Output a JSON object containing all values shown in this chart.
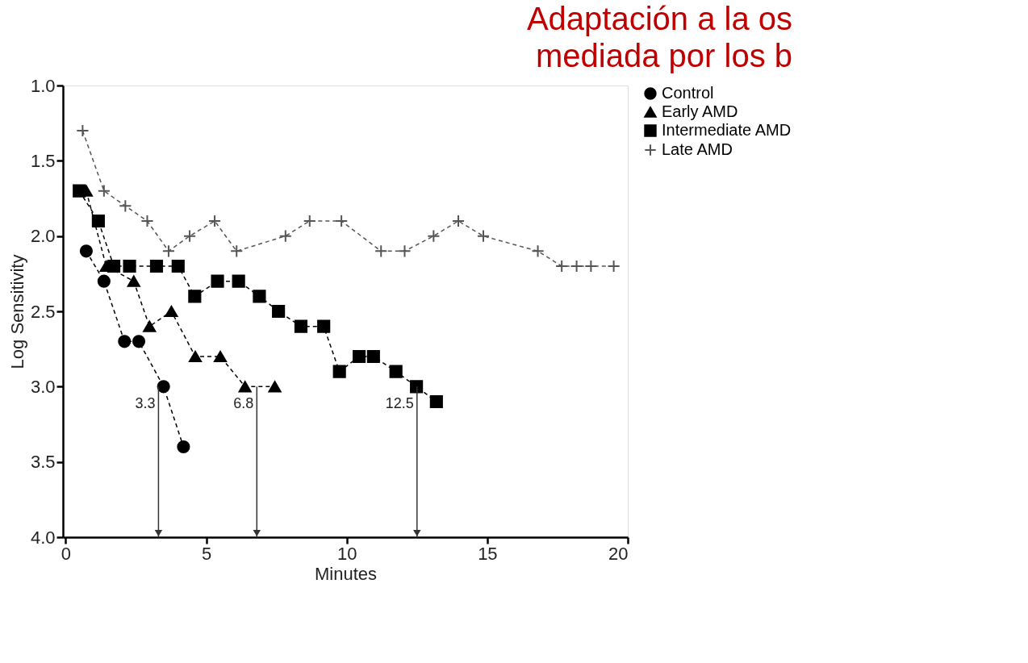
{
  "chart_data": {
    "type": "line",
    "title": "Adaptación a la os\nmediada por los b",
    "xlabel": "Minutes",
    "ylabel": "Log Sensitivity",
    "xlim": [
      -0.1,
      20
    ],
    "xticks": [
      0,
      5,
      10,
      15,
      20
    ],
    "ylim": [
      4.0,
      1.0
    ],
    "yticks": [
      {
        "value": 1,
        "label": "1.0"
      },
      1.5,
      {
        "value": 2,
        "label": "2.0"
      },
      2.5,
      {
        "value": 3,
        "label": "3.0"
      },
      3.5,
      {
        "value": 4,
        "label": "4.0"
      }
    ],
    "grid": false,
    "legend": "right",
    "line_style": "dashed",
    "series": [
      {
        "name": "Control",
        "color": "#000000",
        "marker": "circle",
        "x": [
          0.73,
          1.36,
          2.09,
          2.6,
          3.48,
          4.19
        ],
        "values": [
          2.1,
          2.3,
          2.7,
          2.7,
          3.0,
          3.4
        ]
      },
      {
        "name": "Early AMD",
        "color": "#000000",
        "marker": "triangle",
        "x": [
          0.73,
          1.44,
          2.42,
          2.98,
          3.76,
          4.61,
          5.5,
          6.38,
          7.44
        ],
        "values": [
          1.7,
          2.2,
          2.3,
          2.6,
          2.5,
          2.8,
          2.8,
          3.0,
          3.0
        ]
      },
      {
        "name": "Intermediate AMD",
        "color": "#000000",
        "marker": "square",
        "x": [
          0.48,
          1.16,
          1.71,
          2.27,
          3.23,
          4.0,
          4.59,
          5.4,
          6.15,
          6.89,
          7.57,
          8.37,
          9.18,
          9.74,
          10.44,
          10.95,
          11.75,
          12.48,
          13.19
        ],
        "values": [
          1.7,
          1.9,
          2.2,
          2.2,
          2.2,
          2.2,
          2.4,
          2.3,
          2.3,
          2.4,
          2.5,
          2.6,
          2.6,
          2.9,
          2.8,
          2.8,
          2.9,
          3.0,
          3.1
        ]
      },
      {
        "name": "Late AMD",
        "color": "#555555",
        "marker": "cross",
        "x": [
          0.6,
          1.36,
          2.12,
          2.9,
          3.66,
          4.41,
          5.3,
          6.08,
          7.82,
          8.68,
          9.81,
          11.22,
          12.06,
          13.09,
          13.97,
          14.86,
          16.8,
          17.65,
          18.18,
          18.69,
          19.5
        ],
        "values": [
          1.3,
          1.7,
          1.8,
          1.9,
          2.1,
          2.0,
          1.9,
          2.1,
          2.0,
          1.9,
          1.9,
          2.1,
          2.1,
          2.0,
          1.9,
          2.0,
          2.1,
          2.2,
          2.2,
          2.2,
          2.2
        ]
      }
    ],
    "annotations": [
      {
        "text": "3.3",
        "x": 3.3,
        "y": 3.0
      },
      {
        "text": "6.8",
        "x": 6.8,
        "y": 3.0
      },
      {
        "text": "12.5",
        "x": 12.5,
        "y": 3.0
      }
    ]
  }
}
